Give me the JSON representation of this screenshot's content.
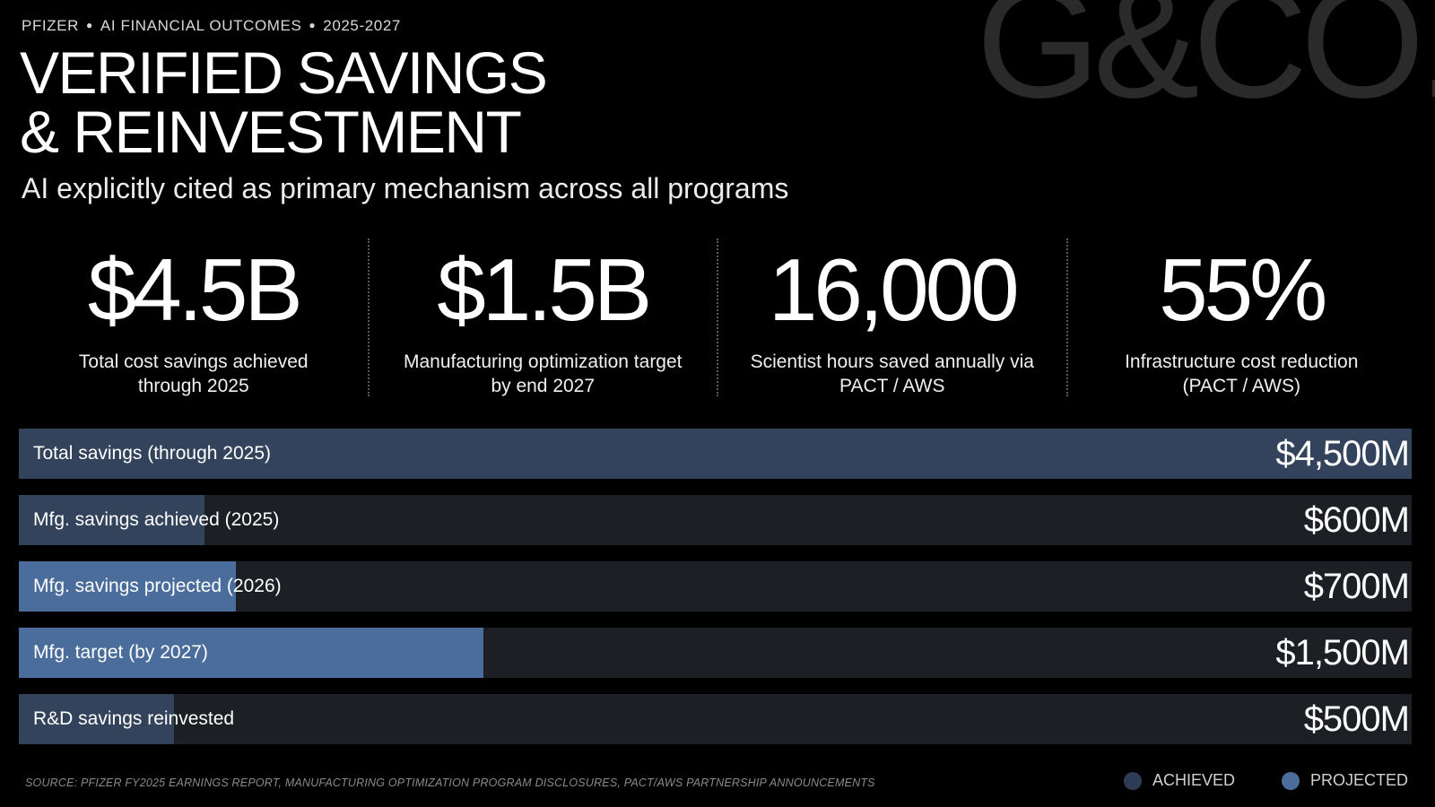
{
  "watermark": "G&CO.",
  "header": {
    "eyebrow": [
      "PFIZER",
      "AI FINANCIAL OUTCOMES",
      "2025-2027"
    ],
    "title_line1": "VERIFIED SAVINGS",
    "title_line2": "& REINVESTMENT",
    "subtitle": "AI explicitly cited as primary mechanism across all programs"
  },
  "kpis": [
    {
      "value": "$4.5B",
      "label": "Total cost savings achieved through 2025"
    },
    {
      "value": "$1.5B",
      "label": "Manufacturing optimization target by end 2027"
    },
    {
      "value": "16,000",
      "label": "Scientist hours saved annually via PACT / AWS"
    },
    {
      "value": "55%",
      "label": "Infrastructure cost reduction (PACT / AWS)"
    }
  ],
  "chart_data": {
    "type": "bar",
    "orientation": "horizontal",
    "unit": "$M",
    "xlim": [
      0,
      4500
    ],
    "categories": [
      "Total savings (through 2025)",
      "Mfg. savings achieved (2025)",
      "Mfg. savings projected (2026)",
      "Mfg. target (by 2027)",
      "R&D savings reinvested"
    ],
    "values": [
      4500,
      600,
      700,
      1500,
      500
    ],
    "value_labels": [
      "$4,500M",
      "$600M",
      "$700M",
      "$1,500M",
      "$500M"
    ],
    "status": [
      "achieved",
      "achieved",
      "projected",
      "projected",
      "achieved"
    ],
    "legend": [
      {
        "name": "ACHIEVED",
        "color": "#2f3c55"
      },
      {
        "name": "PROJECTED",
        "color": "#4a6d9c"
      }
    ]
  },
  "colors": {
    "achieved_bar": "#34435c",
    "projected_bar": "#4a6d9c",
    "track": "#1c1f24"
  },
  "footer": {
    "source": "SOURCE: PFIZER FY2025 EARNINGS REPORT, MANUFACTURING OPTIMIZATION PROGRAM DISCLOSURES, PACT/AWS PARTNERSHIP ANNOUNCEMENTS"
  }
}
